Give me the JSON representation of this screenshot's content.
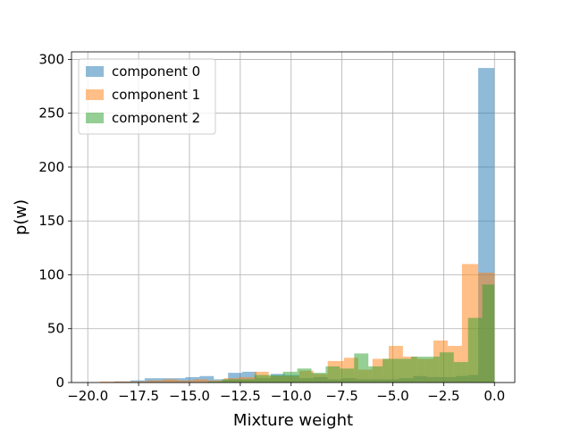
{
  "chart_data": {
    "type": "histogram",
    "xlabel": "Mixture weight",
    "ylabel": "p(w)",
    "xlim": [
      -20.8,
      1.0
    ],
    "ylim": [
      0,
      307
    ],
    "x_ticks": [
      -20.0,
      -17.5,
      -15.0,
      -12.5,
      -10.0,
      -7.5,
      -5.0,
      -2.5,
      0.0
    ],
    "x_tick_labels": [
      "−20.0",
      "−17.5",
      "−15.0",
      "−12.5",
      "−10.0",
      "−7.5",
      "−5.0",
      "−2.5",
      "0.0"
    ],
    "y_ticks": [
      0,
      50,
      100,
      150,
      200,
      250,
      300
    ],
    "y_tick_labels": [
      "0",
      "50",
      "100",
      "150",
      "200",
      "250",
      "300"
    ],
    "grid": true,
    "legend_position": "top-left",
    "opacity": 0.5,
    "series": [
      {
        "name": "component 0",
        "color": "#1f77b4",
        "bins": [
          [
            -18.7,
            -17.9,
            1
          ],
          [
            -17.9,
            -17.2,
            2
          ],
          [
            -17.2,
            -15.9,
            4
          ],
          [
            -15.9,
            -15.2,
            4
          ],
          [
            -15.2,
            -14.5,
            5
          ],
          [
            -14.5,
            -13.8,
            6
          ],
          [
            -13.8,
            -13.1,
            3
          ],
          [
            -13.1,
            -12.4,
            9
          ],
          [
            -12.4,
            -11.7,
            10
          ],
          [
            -11.7,
            -11.0,
            4
          ],
          [
            -11.0,
            -10.3,
            8
          ],
          [
            -10.3,
            -9.6,
            7
          ],
          [
            -9.6,
            -8.9,
            4
          ],
          [
            -8.9,
            -8.2,
            5
          ],
          [
            -8.2,
            -7.5,
            3
          ],
          [
            -7.5,
            -6.8,
            4
          ],
          [
            -6.8,
            -6.1,
            3
          ],
          [
            -6.1,
            -5.4,
            3
          ],
          [
            -5.4,
            -4.7,
            3
          ],
          [
            -4.7,
            -4.0,
            4
          ],
          [
            -4.0,
            -3.3,
            6
          ],
          [
            -3.3,
            -2.6,
            5
          ],
          [
            -2.6,
            -1.9,
            5
          ],
          [
            -1.9,
            -1.3,
            6
          ],
          [
            -1.3,
            -0.8,
            7
          ],
          [
            -0.8,
            0.0,
            292
          ]
        ]
      },
      {
        "name": "component 1",
        "color": "#ff7f0e",
        "bins": [
          [
            -19.4,
            -18.6,
            1
          ],
          [
            -18.6,
            -17.8,
            1
          ],
          [
            -17.8,
            -17.1,
            1
          ],
          [
            -17.1,
            -16.3,
            2
          ],
          [
            -16.3,
            -15.6,
            3
          ],
          [
            -15.6,
            -14.8,
            2
          ],
          [
            -14.8,
            -14.1,
            3
          ],
          [
            -14.1,
            -13.3,
            2
          ],
          [
            -13.3,
            -12.6,
            4
          ],
          [
            -12.6,
            -11.8,
            5
          ],
          [
            -11.8,
            -11.1,
            10
          ],
          [
            -11.1,
            -10.4,
            6
          ],
          [
            -10.4,
            -9.6,
            6
          ],
          [
            -9.6,
            -8.9,
            11
          ],
          [
            -8.9,
            -8.2,
            8
          ],
          [
            -8.2,
            -7.4,
            20
          ],
          [
            -7.4,
            -6.7,
            23
          ],
          [
            -6.7,
            -6.0,
            12
          ],
          [
            -6.0,
            -5.2,
            22
          ],
          [
            -5.2,
            -4.5,
            34
          ],
          [
            -4.5,
            -3.8,
            24
          ],
          [
            -3.8,
            -3.0,
            22
          ],
          [
            -3.0,
            -2.3,
            39
          ],
          [
            -2.3,
            -1.6,
            34
          ],
          [
            -1.6,
            -0.8,
            110
          ],
          [
            -0.8,
            0.0,
            102
          ]
        ]
      },
      {
        "name": "component 2",
        "color": "#2ca02c",
        "bins": [
          [
            -14.1,
            -13.4,
            1
          ],
          [
            -13.4,
            -12.6,
            3
          ],
          [
            -12.6,
            -11.8,
            3
          ],
          [
            -11.8,
            -11.1,
            7
          ],
          [
            -11.1,
            -10.4,
            7
          ],
          [
            -10.4,
            -9.7,
            10
          ],
          [
            -9.7,
            -9.0,
            13
          ],
          [
            -9.0,
            -8.3,
            9
          ],
          [
            -8.3,
            -7.6,
            15
          ],
          [
            -7.6,
            -6.9,
            13
          ],
          [
            -6.9,
            -6.2,
            27
          ],
          [
            -6.2,
            -5.5,
            15
          ],
          [
            -5.5,
            -4.8,
            22
          ],
          [
            -4.8,
            -4.1,
            22
          ],
          [
            -4.1,
            -3.4,
            24
          ],
          [
            -3.4,
            -2.7,
            24
          ],
          [
            -2.7,
            -2.0,
            28
          ],
          [
            -2.0,
            -1.3,
            19
          ],
          [
            -1.3,
            -0.6,
            60
          ],
          [
            -0.6,
            0.0,
            91
          ]
        ]
      }
    ]
  }
}
